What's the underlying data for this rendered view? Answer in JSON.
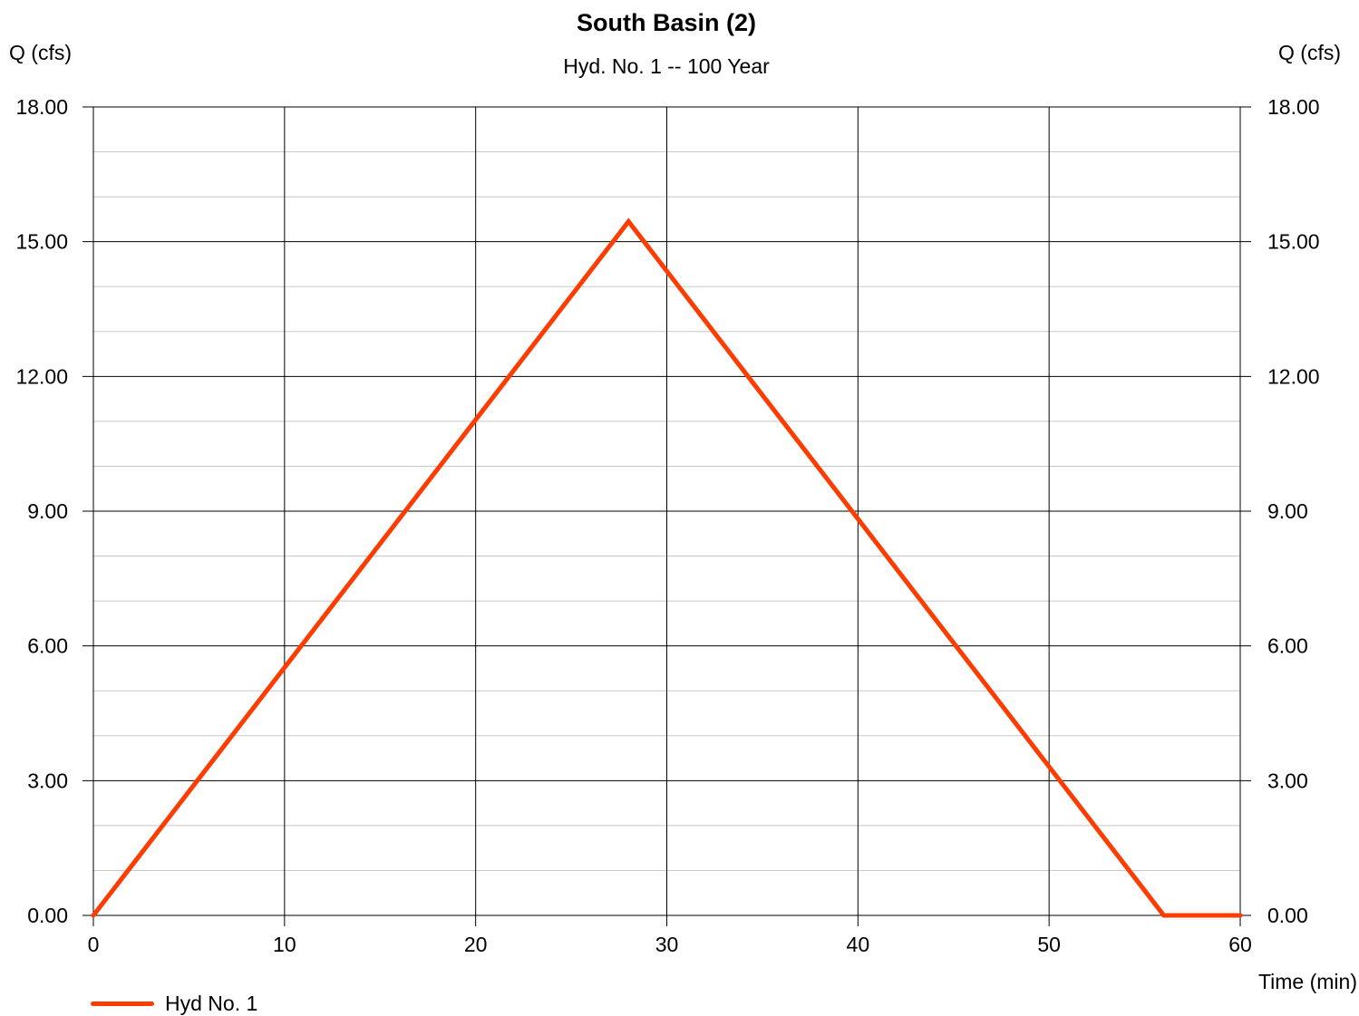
{
  "chart_data": {
    "type": "line",
    "title": "South Basin (2)",
    "subtitle": "Hyd. No. 1 -- 100 Year",
    "ylabel": "Q (cfs)",
    "y2label": "Q (cfs)",
    "xlabel": "Time (min)",
    "xlim": [
      0,
      60
    ],
    "ylim": [
      0,
      18
    ],
    "x_ticks": [
      0,
      10,
      20,
      30,
      40,
      50,
      60
    ],
    "y_ticks": [
      "0.00",
      "3.00",
      "6.00",
      "9.00",
      "12.00",
      "15.00",
      "18.00"
    ],
    "y_minor_step": 1,
    "grid": true,
    "legend_position": "bottom-left",
    "series": [
      {
        "name": "Hyd No. 1",
        "color": "#ff3c00",
        "x": [
          0,
          28,
          56,
          60
        ],
        "y": [
          0,
          15.45,
          0,
          0
        ]
      }
    ]
  }
}
